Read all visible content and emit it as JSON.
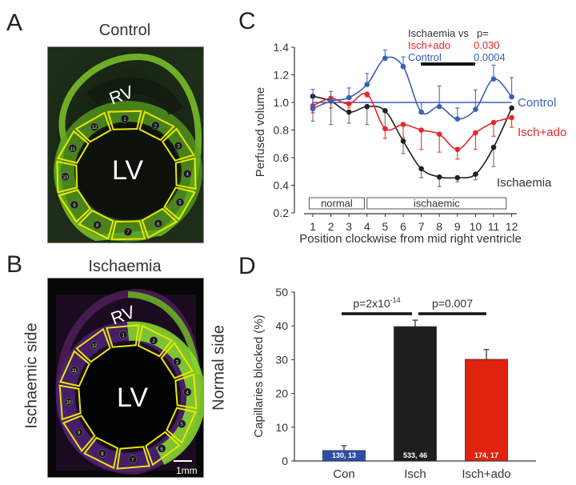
{
  "panels": {
    "a": {
      "letter": "A",
      "title": "Control",
      "rv_label": "RV",
      "lv_label": "LV",
      "segments": [
        "1",
        "2",
        "3",
        "4",
        "5",
        "6",
        "7",
        "8",
        "9",
        "10",
        "11",
        "12"
      ]
    },
    "b": {
      "letter": "B",
      "title": "Ischaemia",
      "rv_label": "RV",
      "lv_label": "LV",
      "left_side_label": "Ischaemic side",
      "right_side_label": "Normal side",
      "scale_bar_label": "1mm",
      "segments": [
        "1",
        "2",
        "3",
        "4",
        "5",
        "6",
        "7",
        "8",
        "9",
        "10",
        "11",
        "12"
      ]
    },
    "c": {
      "letter": "C"
    },
    "d": {
      "letter": "D"
    }
  },
  "colors": {
    "control": "#3a5fb8",
    "isch_ado": "#e8262a",
    "ischaemia": "#222222",
    "bar_con": "#2d4fa8",
    "bar_isch": "#1e1e1e",
    "bar_isch_ado": "#e0230f",
    "tissue_green": "#7fd42a",
    "roi_yellow": "#e8e800",
    "tissue_purple": "#5a1f6b"
  },
  "chart_data": [
    {
      "type": "line",
      "panel": "C",
      "title": "",
      "xlabel": "Position clockwise from mid right ventricle",
      "ylabel": "Perfused volume",
      "x": [
        1,
        2,
        3,
        4,
        5,
        6,
        7,
        8,
        9,
        10,
        11,
        12
      ],
      "x_tick_labels": [
        "1",
        "2",
        "3",
        "4",
        "5",
        "6",
        "7",
        "8",
        "9",
        "10",
        "11",
        "12"
      ],
      "ylim": [
        0.2,
        1.4
      ],
      "y_ticks": [
        0.2,
        0.4,
        0.6,
        0.8,
        1.0,
        1.2,
        1.4
      ],
      "y_tick_labels": [
        "0.2",
        "0.4",
        "0.6",
        "0.8",
        "1.0",
        "1.2",
        "1.4"
      ],
      "grid": false,
      "reference_line": {
        "y": 1.0,
        "label": "Control"
      },
      "series": [
        {
          "name": "Control",
          "color_key": "control",
          "label": "Control",
          "values": [
            0.955,
            1.01,
            1.035,
            1.13,
            1.32,
            1.26,
            0.93,
            0.97,
            0.88,
            0.95,
            1.17,
            1.04
          ],
          "err": [
            0.14,
            0.07,
            0.07,
            0.08,
            0.06,
            0.07,
            0.07,
            0.15,
            0.08,
            0.14,
            0.1,
            0.14
          ],
          "err_dir": "up"
        },
        {
          "name": "Isch+ado",
          "color_key": "isch_ado",
          "label": "Isch+ado",
          "values": [
            0.975,
            1.03,
            0.99,
            1.06,
            0.81,
            0.84,
            0.8,
            0.77,
            0.66,
            0.78,
            0.855,
            0.89
          ],
          "err": [
            0.05,
            0.07,
            0.03,
            0.02,
            0.07,
            0.095,
            0.14,
            0.13,
            0.07,
            0.12,
            0.1,
            0.07
          ],
          "err_dir": "down"
        },
        {
          "name": "Ischaemia",
          "color_key": "ischaemia",
          "label": "Ischaemia",
          "values": [
            1.045,
            1.01,
            0.93,
            0.97,
            0.94,
            0.72,
            0.52,
            0.46,
            0.455,
            0.48,
            0.675,
            0.96
          ],
          "err": [
            0.18,
            0.17,
            0.08,
            0.13,
            0.14,
            0.09,
            0.065,
            0.07,
            0.03,
            0.04,
            0.14,
            0.0
          ],
          "err_dir": "down"
        }
      ],
      "region_boxes": [
        {
          "label": "normal",
          "from": 0.8,
          "to": 3.85
        },
        {
          "label": "ischaemic",
          "from": 4.0,
          "to": 11.7
        }
      ],
      "significance": {
        "header_left": "Ischaemia vs",
        "header_right": "p=",
        "rows": [
          {
            "label": "Isch+ado",
            "p": "0.030",
            "color_key": "isch_ado"
          },
          {
            "label": "Control",
            "p": "0.0004",
            "color_key": "control"
          }
        ],
        "bar_from_x": 7,
        "bar_to_x": 10
      }
    },
    {
      "type": "bar",
      "panel": "D",
      "title": "",
      "xlabel": "",
      "ylabel": "Capillaries blocked (%)",
      "categories": [
        "Con",
        "Isch",
        "Isch+ado"
      ],
      "values": [
        3.1,
        39.8,
        30.1
      ],
      "err": [
        1.4,
        1.9,
        2.9
      ],
      "bar_labels": [
        "130, 13",
        "533, 46",
        "174, 17"
      ],
      "color_keys": [
        "bar_con",
        "bar_isch",
        "bar_isch_ado"
      ],
      "ylim": [
        0,
        50
      ],
      "y_ticks": [
        0,
        10,
        20,
        30,
        40,
        50
      ],
      "y_tick_labels": [
        "0",
        "10",
        "20",
        "30",
        "40",
        "50"
      ],
      "grid": false,
      "comparisons": [
        {
          "between": [
            "Con",
            "Isch"
          ],
          "label_base": "p=2x10",
          "label_exp": "-14"
        },
        {
          "between": [
            "Isch",
            "Isch+ado"
          ],
          "label_base": "p=0.007",
          "label_exp": ""
        }
      ]
    }
  ]
}
